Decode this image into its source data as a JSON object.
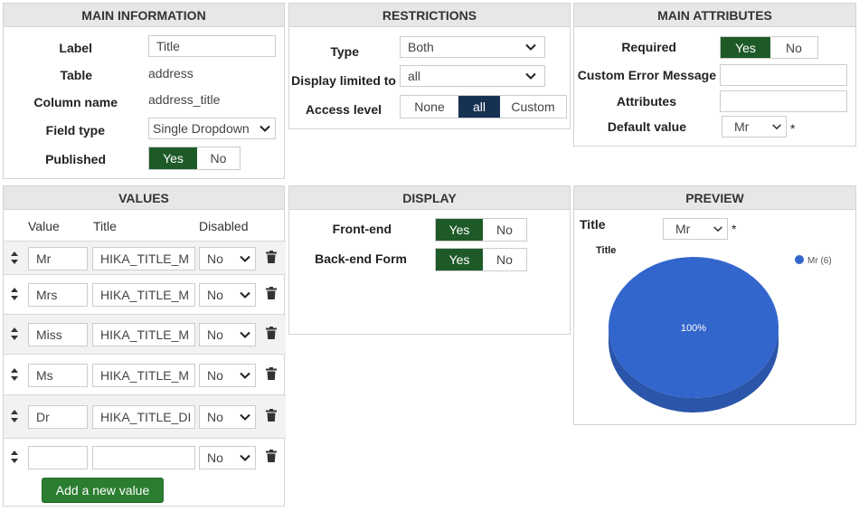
{
  "main_info": {
    "title": "MAIN INFORMATION",
    "label_label": "Label",
    "label_value": "Title",
    "table_label": "Table",
    "table_value": "address",
    "column_label": "Column name",
    "column_value": "address_title",
    "fieldtype_label": "Field type",
    "fieldtype_value": "Single Dropdown",
    "published_label": "Published",
    "published_yes": "Yes",
    "published_no": "No"
  },
  "restrictions": {
    "title": "RESTRICTIONS",
    "type_label": "Type",
    "type_value": "Both",
    "display_label": "Display limited to",
    "display_value": "all",
    "access_label": "Access level",
    "access_none": "None",
    "access_all": "all",
    "access_custom": "Custom"
  },
  "main_attributes": {
    "title": "MAIN ATTRIBUTES",
    "required_label": "Required",
    "required_yes": "Yes",
    "required_no": "No",
    "error_label": "Custom Error Message",
    "error_value": "",
    "attributes_label": "Attributes",
    "attributes_value": "",
    "default_label": "Default value",
    "default_value": "Mr",
    "asterisk": "*"
  },
  "values": {
    "title": "VALUES",
    "col_value": "Value",
    "col_title": "Title",
    "col_disabled": "Disabled",
    "rows": [
      {
        "value": "Mr",
        "title": "HIKA_TITLE_M",
        "disabled": "No"
      },
      {
        "value": "Mrs",
        "title": "HIKA_TITLE_M",
        "disabled": "No"
      },
      {
        "value": "Miss",
        "title": "HIKA_TITLE_M",
        "disabled": "No"
      },
      {
        "value": "Ms",
        "title": "HIKA_TITLE_M",
        "disabled": "No"
      },
      {
        "value": "Dr",
        "title": "HIKA_TITLE_DI",
        "disabled": "No"
      },
      {
        "value": "",
        "title": "",
        "disabled": "No"
      }
    ],
    "add_button": "Add a new value"
  },
  "display": {
    "title": "DISPLAY",
    "frontend_label": "Front-end",
    "frontend_yes": "Yes",
    "frontend_no": "No",
    "backend_label": "Back-end Form",
    "backend_yes": "Yes",
    "backend_no": "No"
  },
  "preview": {
    "title": "PREVIEW",
    "field_label": "Title",
    "field_value": "Mr",
    "asterisk": "*"
  },
  "chart_data": {
    "type": "pie",
    "title": "Title",
    "categories": [
      "Mr"
    ],
    "values": [
      6
    ],
    "legend": [
      "Mr (6)"
    ],
    "data_labels": [
      "100%"
    ],
    "legend_position": "top-right",
    "colors": [
      "#3366cc"
    ]
  },
  "colors": {
    "toggle_on": "#1e5a28",
    "toggle_dark": "#173152",
    "add_button": "#2b7d2f",
    "header_bg": "#e7e7e7",
    "pie_top": "#3366cc",
    "pie_side": "#2a55a8"
  }
}
